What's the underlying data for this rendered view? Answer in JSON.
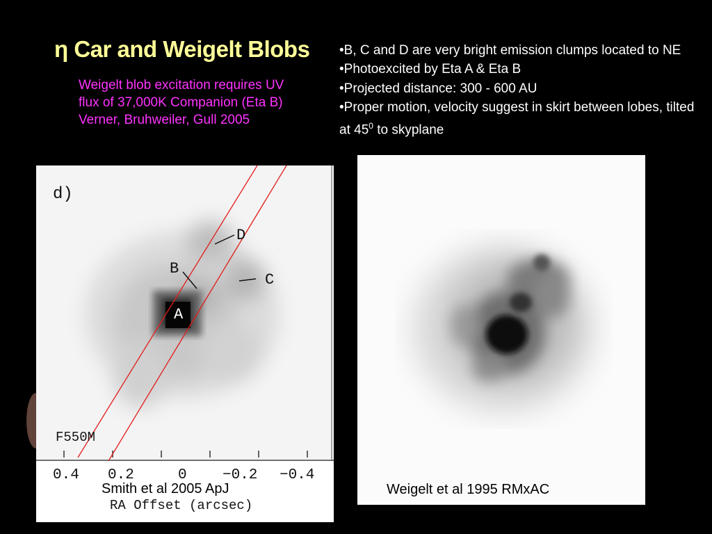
{
  "slide": {
    "title": "η Car and Weigelt Blobs",
    "subtitle": "Weigelt blob excitation requires UV flux of 37,000K Companion (Eta B) Verner, Bruhweiler, Gull 2005",
    "bullets": [
      "•B, C and D are very bright emission clumps located to NE",
      "•Photoexcited by Eta A & Eta B",
      "•Projected distance: 300 - 600 AU",
      "•Proper motion, velocity suggest in skirt between lobes, tilted at 45"
    ],
    "bullet_last_sup": "0",
    "bullet_last_tail": " to skyplane"
  },
  "left_figure": {
    "panel_label": "d)",
    "filter_label": "F550M",
    "blob_labels": {
      "a": "A",
      "b": "B",
      "c": "C",
      "d": "D"
    },
    "x_ticks": [
      "0.4",
      "0.2",
      "0",
      "−0.2",
      "−0.4"
    ],
    "x_axis_label": "RA Offset (arcsec)",
    "caption": "Smith  et al 2005 ApJ",
    "slit_color": "#e21b1b"
  },
  "right_figure": {
    "caption": "Weigelt et al 1995 RMxAC"
  }
}
